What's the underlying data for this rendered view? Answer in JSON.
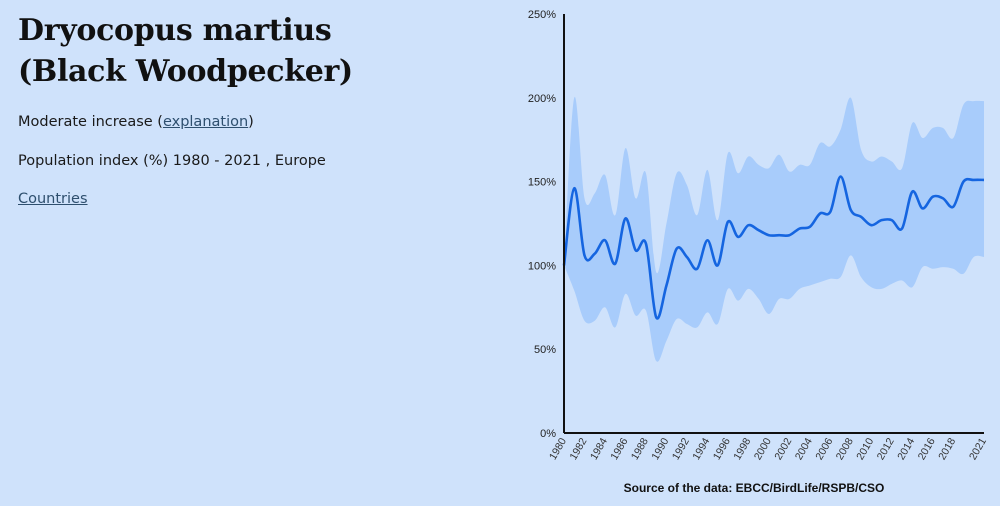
{
  "species": {
    "title_line1": "Dryocopus martius",
    "title_line2": "(Black Woodpecker)"
  },
  "trend": {
    "prefix": "Moderate increase (",
    "link_label": "explanation",
    "suffix": ")"
  },
  "index_caption": "Population index (%) 1980 - 2021 , Europe",
  "countries_link": "Countries",
  "colors": {
    "background": "#cfe2fb",
    "line": "#1565e0",
    "band": "#a8ccfb",
    "axis": "#111111"
  },
  "chart_data": {
    "type": "area",
    "title": "",
    "xlabel": "",
    "ylabel": "",
    "ylim": [
      0,
      250
    ],
    "yticks": [
      0,
      50,
      100,
      150,
      200,
      250
    ],
    "ytick_labels": [
      "0%",
      "50%",
      "100%",
      "150%",
      "200%",
      "250%"
    ],
    "xticks": [
      1980,
      1982,
      1984,
      1986,
      1988,
      1990,
      1992,
      1994,
      1996,
      1998,
      2000,
      2002,
      2004,
      2006,
      2008,
      2010,
      2012,
      2014,
      2016,
      2018,
      2021
    ],
    "grid": false,
    "source": "Source of the data: EBCC/BirdLife/RSPB/CSO",
    "x": [
      1980,
      1981,
      1982,
      1983,
      1984,
      1985,
      1986,
      1987,
      1988,
      1989,
      1990,
      1991,
      1992,
      1993,
      1994,
      1995,
      1996,
      1997,
      1998,
      1999,
      2000,
      2001,
      2002,
      2003,
      2004,
      2005,
      2006,
      2007,
      2008,
      2009,
      2010,
      2011,
      2012,
      2013,
      2014,
      2015,
      2016,
      2017,
      2018,
      2019,
      2020,
      2021
    ],
    "series": [
      {
        "values": [
          100,
          146,
          106,
          107,
          115,
          101,
          128,
          109,
          113,
          69,
          88,
          110,
          105,
          98,
          115,
          100,
          126,
          117,
          124,
          121,
          118,
          118,
          118,
          122,
          123,
          131,
          132,
          153,
          133,
          129,
          124,
          127,
          127,
          122,
          144,
          134,
          141,
          140,
          135,
          150,
          151,
          151
        ]
      }
    ],
    "confidence_band": {
      "upper": [
        100,
        200,
        140,
        143,
        154,
        130,
        170,
        140,
        155,
        96,
        125,
        155,
        148,
        130,
        157,
        127,
        167,
        155,
        165,
        160,
        158,
        166,
        156,
        160,
        160,
        173,
        171,
        181,
        200,
        169,
        162,
        165,
        162,
        158,
        185,
        176,
        182,
        182,
        176,
        196,
        198,
        198
      ],
      "lower": [
        100,
        85,
        67,
        67,
        75,
        63,
        83,
        70,
        73,
        43,
        55,
        68,
        65,
        63,
        72,
        65,
        86,
        79,
        86,
        80,
        71,
        80,
        80,
        86,
        88,
        90,
        92,
        93,
        106,
        93,
        87,
        86,
        89,
        91,
        87,
        99,
        98,
        99,
        98,
        95,
        105,
        105
      ]
    }
  }
}
